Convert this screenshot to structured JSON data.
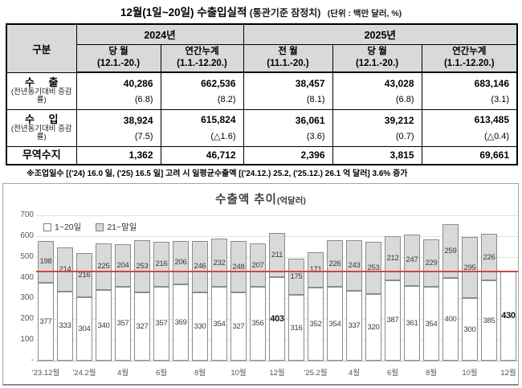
{
  "title": {
    "main": "12월(1일~20일) 수출입실적",
    "qualifier": " (통관기준 잠정치)",
    "unit": "(단위 : 백만 달러, %)"
  },
  "table": {
    "corner": "구분",
    "year_2024": "2024년",
    "year_2025": "2025년",
    "columns": [
      {
        "line1": "당 월",
        "line2": "(12.1.-20.)"
      },
      {
        "line1": "연간누계",
        "line2": "(1.1.-12.20.)"
      },
      {
        "line1": "전 월",
        "line2": "(11.1.-20.)"
      },
      {
        "line1": "당 월",
        "line2": "(12.1.-20.)"
      },
      {
        "line1": "연간누계",
        "line2": "(1.1.-12.20.)"
      }
    ],
    "rows": [
      {
        "label": "수 출",
        "sublabel": "(전년동기대비 증감률)",
        "values": [
          "40,286",
          "662,536",
          "38,457",
          "43,028",
          "683,146"
        ],
        "sub": [
          "(6.8)",
          "(8.2)",
          "(8.1)",
          "(6.8)",
          "(3.1)"
        ]
      },
      {
        "label": "수 입",
        "sublabel": "(전년동기대비 증감률)",
        "values": [
          "38,924",
          "615,824",
          "36,061",
          "39,212",
          "613,485"
        ],
        "sub": [
          "(7.5)",
          "(△1.6)",
          "(3.6)",
          "(0.7)",
          "(△0.4)"
        ]
      },
      {
        "label": "무역수지",
        "values": [
          "1,362",
          "46,712",
          "2,396",
          "3,815",
          "69,661"
        ]
      }
    ]
  },
  "footnote": "※조업일수 [('24) 16.0 일, ('25) 16.5 일] 고려 시 일평균수출액 [('24.12.) 25.2, ('25.12.) 26.1 억 달러] 3.6% 증가",
  "chart_data": {
    "type": "bar",
    "stacked": true,
    "title": "수출액 추이",
    "title_unit": "(억달러)",
    "legend": [
      "1~20일",
      "21~말일"
    ],
    "ylim": [
      0,
      700
    ],
    "y_tick_labels": [
      "700",
      "600",
      "500",
      "400",
      "300",
      "200",
      "100",
      "-"
    ],
    "x_tick_labels": [
      "'23.12월",
      "'24.2월",
      "4월",
      "6월",
      "8월",
      "10월",
      "12월",
      "'25.2월",
      "4월",
      "6월",
      "8월",
      "10월",
      "12월"
    ],
    "x_tick_bar_indexes": [
      0,
      2,
      4,
      6,
      8,
      10,
      12,
      14,
      16,
      18,
      20,
      22,
      24
    ],
    "series": [
      {
        "name": "1~20일",
        "values": [
          377,
          333,
          304,
          340,
          357,
          327,
          357,
          369,
          330,
          354,
          327,
          356,
          403,
          316,
          352,
          354,
          337,
          320,
          387,
          361,
          354,
          400,
          300,
          385,
          430
        ]
      },
      {
        "name": "21~말일",
        "values": [
          198,
          214,
          216,
          225,
          204,
          253,
          216,
          206,
          246,
          232,
          248,
          207,
          211,
          175,
          171,
          226,
          243,
          253,
          212,
          247,
          229,
          259,
          295,
          226,
          null
        ]
      }
    ],
    "emphasized_indexes": [
      12,
      24
    ],
    "reference_line": 430,
    "colors": {
      "first_period": "#ffffff",
      "rest_period": "#d9d9d9",
      "bar_border": "#8c8c8c",
      "reference": "#cf4444"
    },
    "grid": true,
    "legend_position": "top-left"
  }
}
